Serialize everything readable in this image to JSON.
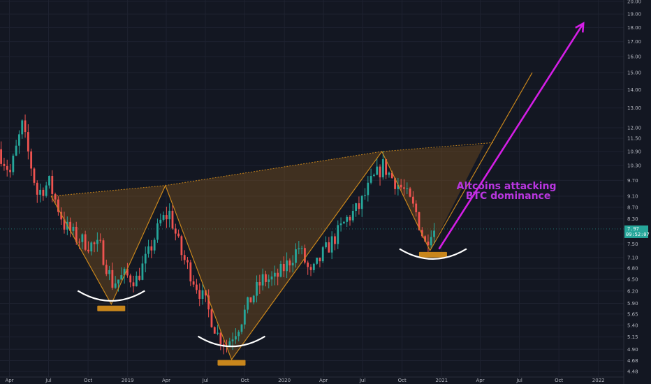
{
  "chart_data": {
    "type": "candlestick",
    "title": "",
    "xlabel": "",
    "ylabel": "",
    "y_scale": "log",
    "ylim": [
      4.38,
      20.0
    ],
    "x_range": [
      "2018-03-10",
      "2022-03-01"
    ],
    "grid": true,
    "y_ticks": [
      20.0,
      19.0,
      18.0,
      17.0,
      16.0,
      15.0,
      14.0,
      13.0,
      12.0,
      11.5,
      10.9,
      10.3,
      9.7,
      9.1,
      8.7,
      8.3,
      7.5,
      7.1,
      6.8,
      6.5,
      6.2,
      5.9,
      5.65,
      5.4,
      5.15,
      4.9,
      4.68,
      4.48
    ],
    "y_tick_labels": [
      "20.00",
      "19.00",
      "18.00",
      "17.00",
      "16.00",
      "15.00",
      "14.00",
      "13.00",
      "12.00",
      "11.50",
      "10.90",
      "10.30",
      "9.70",
      "9.10",
      "8.70",
      "8.30",
      "7.50",
      "7.10",
      "6.80",
      "6.50",
      "6.20",
      "5.90",
      "5.65",
      "5.40",
      "5.15",
      "4.90",
      "4.68",
      "4.48"
    ],
    "x_ticks": [
      {
        "label": "Apr",
        "date": "2018-04-01"
      },
      {
        "label": "Jul",
        "date": "2018-07-01"
      },
      {
        "label": "Oct",
        "date": "2018-10-01"
      },
      {
        "label": "2019",
        "date": "2019-01-01"
      },
      {
        "label": "Apr",
        "date": "2019-04-01"
      },
      {
        "label": "Jul",
        "date": "2019-07-01"
      },
      {
        "label": "Oct",
        "date": "2019-10-01"
      },
      {
        "label": "2020",
        "date": "2020-01-01"
      },
      {
        "label": "Apr",
        "date": "2020-04-01"
      },
      {
        "label": "Jul",
        "date": "2020-07-01"
      },
      {
        "label": "Oct",
        "date": "2020-10-01"
      },
      {
        "label": "2021",
        "date": "2021-01-01"
      },
      {
        "label": "Apr",
        "date": "2021-04-01"
      },
      {
        "label": "Jul",
        "date": "2021-07-01"
      },
      {
        "label": "Oct",
        "date": "2021-10-01"
      },
      {
        "label": "2022",
        "date": "2022-01-01"
      }
    ],
    "current_price": {
      "value": 7.97,
      "label": "7.97",
      "countdown": "09:52:07"
    },
    "colors": {
      "background": "#131722",
      "grid": "#1e2230",
      "up": "#26a69a",
      "down": "#ef5350",
      "pattern": "#c8861c",
      "pattern_fill": "rgba(120,80,30,0.45)",
      "cup": "#ffffff",
      "arrow": "#d41ee6",
      "annotation": "#b936e0",
      "badge_bg": "#26a69a"
    },
    "price_path": [
      [
        "2018-03-10",
        11.0
      ],
      [
        "2018-04-07",
        10.0
      ],
      [
        "2018-05-05",
        12.1
      ],
      [
        "2018-06-09",
        9.2
      ],
      [
        "2018-07-07",
        9.6
      ],
      [
        "2018-08-11",
        8.1
      ],
      [
        "2018-09-08",
        7.7
      ],
      [
        "2018-10-06",
        7.5
      ],
      [
        "2018-11-03",
        7.4
      ],
      [
        "2018-12-01",
        6.4
      ],
      [
        "2018-12-29",
        6.6
      ],
      [
        "2019-01-26",
        6.5
      ],
      [
        "2019-02-23",
        7.2
      ],
      [
        "2019-03-23",
        8.2
      ],
      [
        "2019-04-13",
        8.5
      ],
      [
        "2019-05-11",
        7.2
      ],
      [
        "2019-06-08",
        6.5
      ],
      [
        "2019-07-06",
        5.9
      ],
      [
        "2019-08-03",
        5.2
      ],
      [
        "2019-08-24",
        5.0
      ],
      [
        "2019-09-21",
        5.4
      ],
      [
        "2019-10-19",
        6.0
      ],
      [
        "2019-11-16",
        6.5
      ],
      [
        "2019-12-14",
        6.5
      ],
      [
        "2020-01-11",
        6.9
      ],
      [
        "2020-02-08",
        7.4
      ],
      [
        "2020-03-07",
        6.6
      ],
      [
        "2020-04-04",
        7.2
      ],
      [
        "2020-05-02",
        7.7
      ],
      [
        "2020-05-30",
        8.3
      ],
      [
        "2020-06-27",
        8.7
      ],
      [
        "2020-07-25",
        9.6
      ],
      [
        "2020-08-22",
        10.3
      ],
      [
        "2020-09-12",
        9.8
      ],
      [
        "2020-10-10",
        9.3
      ],
      [
        "2020-11-07",
        8.5
      ],
      [
        "2020-11-28",
        7.5
      ],
      [
        "2020-12-12",
        7.97
      ]
    ],
    "pattern": {
      "zigzag": [
        [
          "2018-07-07",
          9.1
        ],
        [
          "2018-11-24",
          5.88
        ],
        [
          "2019-03-30",
          9.5
        ],
        [
          "2019-08-31",
          4.7
        ],
        [
          "2020-08-15",
          10.9
        ],
        [
          "2020-12-05",
          7.3
        ],
        [
          "2021-07-31",
          15.0
        ]
      ],
      "neckline": [
        [
          "2018-07-07",
          9.1
        ],
        [
          "2019-03-30",
          9.5
        ],
        [
          "2020-08-15",
          10.9
        ],
        [
          "2021-05-01",
          11.3
        ]
      ],
      "bottoms": [
        [
          "2018-11-24",
          5.78
        ],
        [
          "2019-08-31",
          4.64
        ],
        [
          "2020-12-12",
          7.18
        ]
      ],
      "cups": [
        [
          "2018-11-24",
          5.95
        ],
        [
          "2019-08-31",
          4.95
        ],
        [
          "2020-12-12",
          7.05
        ]
      ]
    },
    "arrow": {
      "from": [
        "2020-12-26",
        7.35
      ],
      "to": [
        "2021-11-27",
        18.3
      ]
    },
    "annotation": {
      "lines": [
        "Altcoins attacking",
        "BTC dominance"
      ],
      "anchor": [
        "2021-06-05",
        9.2
      ]
    }
  }
}
